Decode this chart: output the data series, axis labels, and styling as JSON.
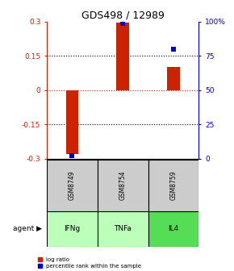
{
  "title": "GDS498 / 12989",
  "samples": [
    "GSM8749",
    "GSM8754",
    "GSM8759"
  ],
  "agents": [
    "IFNg",
    "TNFa",
    "IL4"
  ],
  "log_ratios": [
    -0.28,
    0.295,
    0.1
  ],
  "percentile_ranks": [
    2.0,
    99.0,
    80.0
  ],
  "ylim_left": [
    -0.3,
    0.3
  ],
  "ylim_right": [
    0,
    100
  ],
  "yticks_left": [
    -0.3,
    -0.15,
    0,
    0.15,
    0.3
  ],
  "yticks_right": [
    0,
    25,
    50,
    75,
    100
  ],
  "ytick_labels_left": [
    "-0.3",
    "-0.15",
    "0",
    "0.15",
    "0.3"
  ],
  "ytick_labels_right": [
    "0",
    "25",
    "50",
    "75",
    "100%"
  ],
  "hlines_dotted": [
    -0.15,
    0.15
  ],
  "hline_red": 0.0,
  "bar_color": "#CC2200",
  "point_color": "#0000CC",
  "agent_colors": [
    "#BBFFBB",
    "#BBFFBB",
    "#55DD55"
  ],
  "sample_box_color": "#CCCCCC",
  "legend_bar_label": "log ratio",
  "legend_point_label": "percentile rank within the sample",
  "bar_width": 0.25,
  "n_samples": 3
}
